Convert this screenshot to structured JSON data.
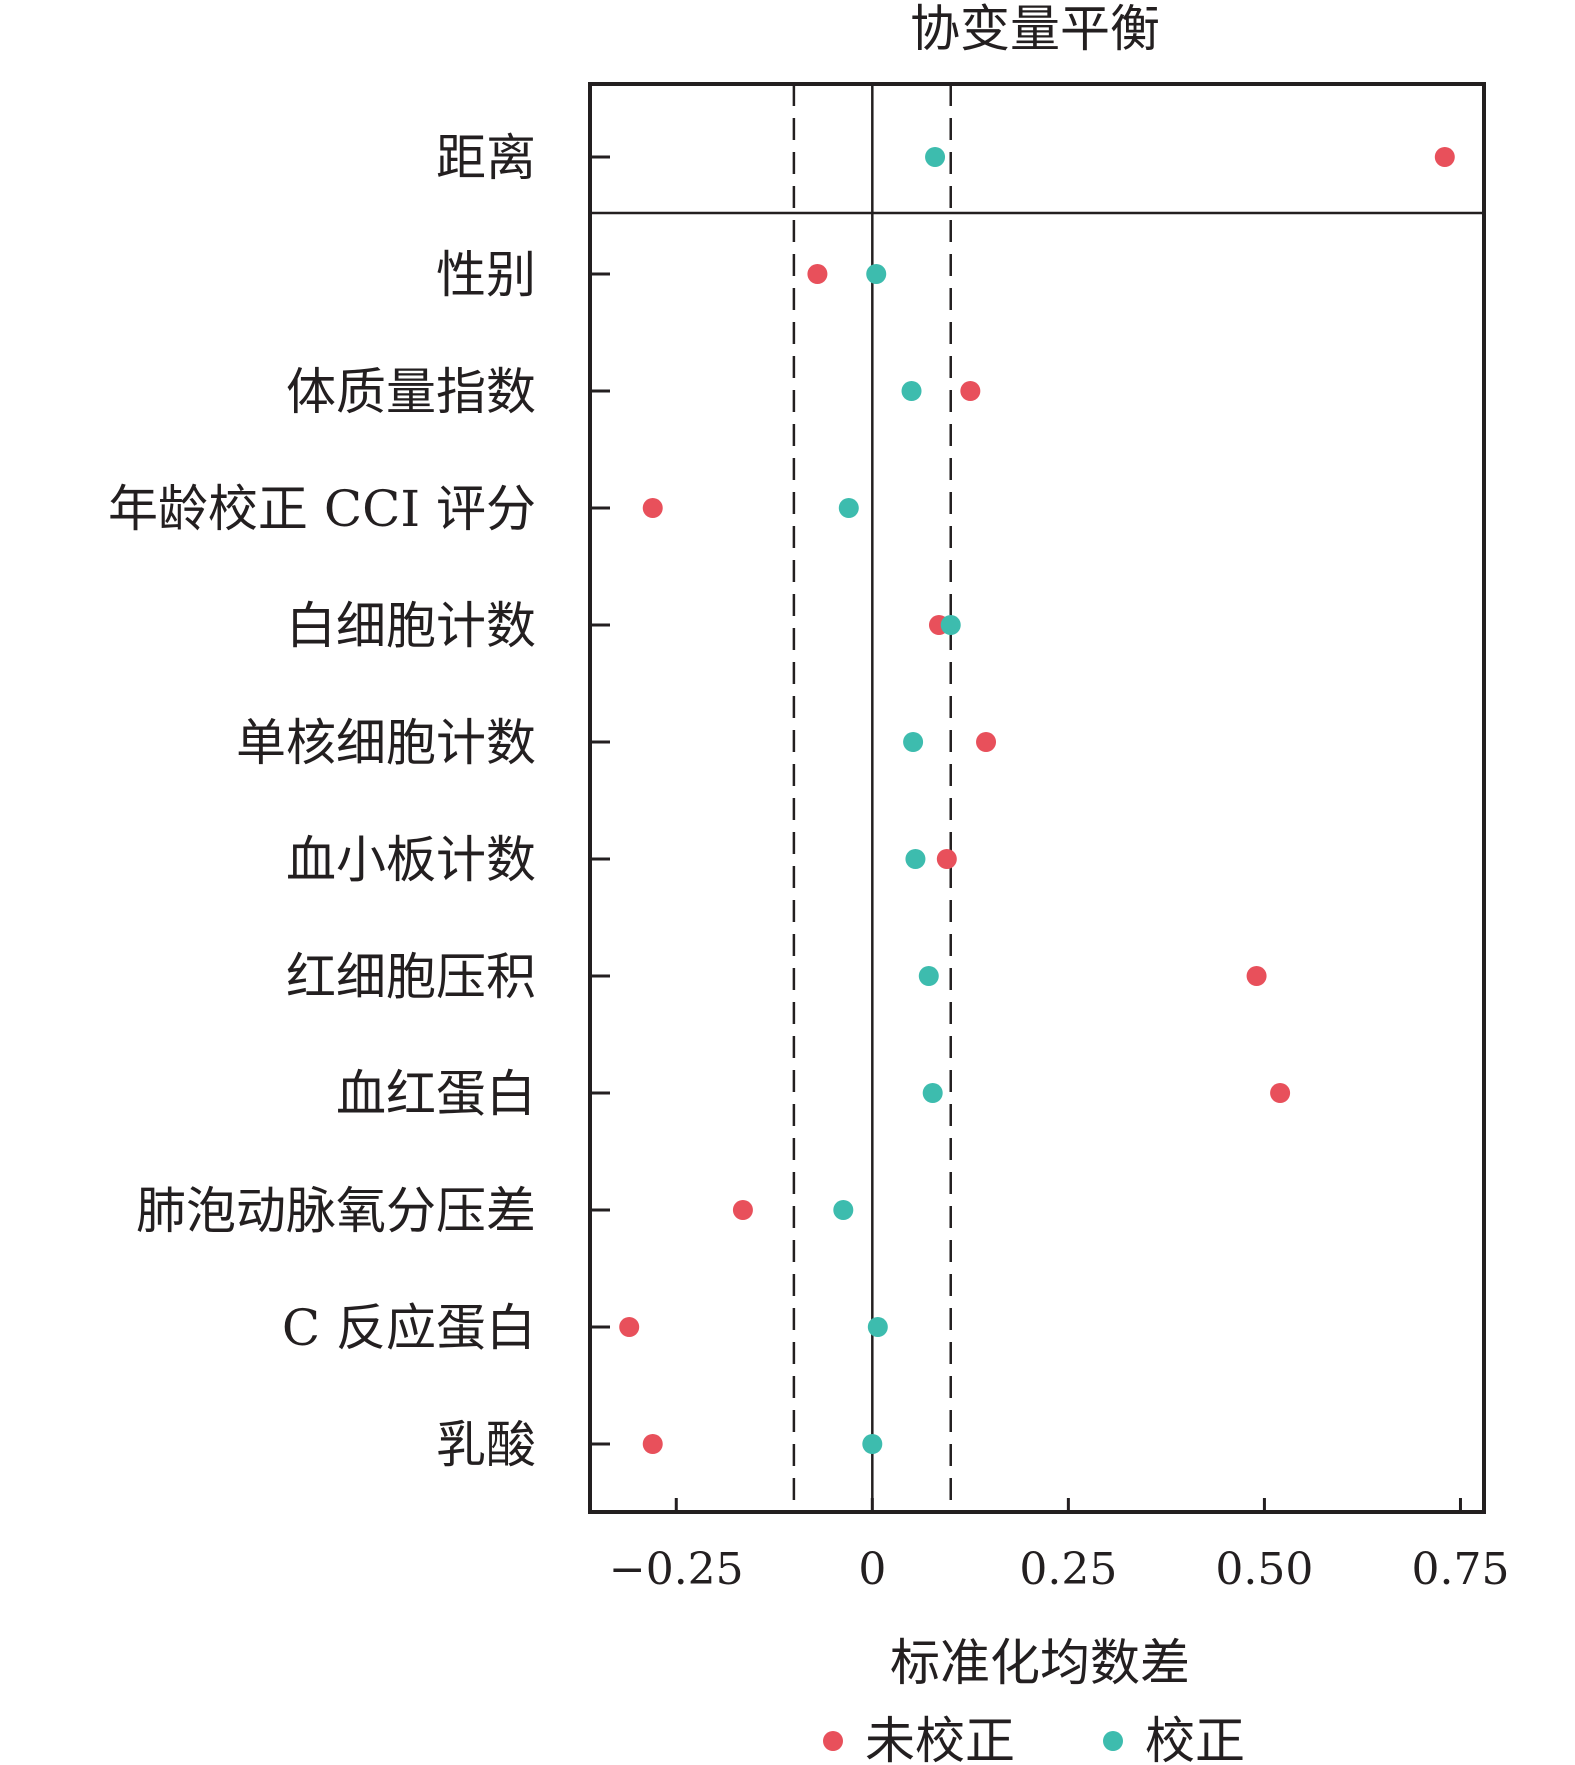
{
  "chart_data": {
    "type": "scatter",
    "title": "协变量平衡",
    "xlabel": "标准化均数差",
    "ylabel": "",
    "xlim": [
      -0.36,
      0.78
    ],
    "xticks": [
      -0.25,
      0,
      0.25,
      0.5,
      0.75
    ],
    "xtick_labels": [
      "−0.25",
      "0",
      "0.25",
      "0.50",
      "0.75"
    ],
    "reference_lines": {
      "solid": 0,
      "dashed": [
        -0.1,
        0.1
      ]
    },
    "grid": false,
    "legend_position": "bottom",
    "categories": [
      "距离",
      "性别",
      "体质量指数",
      "年龄校正 CCI 评分",
      "白细胞计数",
      "单核细胞计数",
      "血小板计数",
      "红细胞压积",
      "血红蛋白",
      "肺泡动脉氧分压差",
      "C 反应蛋白",
      "乳酸"
    ],
    "series": [
      {
        "name": "未校正",
        "color": "#e8505b",
        "values": [
          0.73,
          -0.07,
          0.125,
          -0.28,
          0.085,
          0.145,
          0.095,
          0.49,
          0.52,
          -0.165,
          -0.31,
          -0.28
        ]
      },
      {
        "name": "校正",
        "color": "#3dbcae",
        "values": [
          0.08,
          0.005,
          0.05,
          -0.03,
          0.1,
          0.052,
          0.055,
          0.072,
          0.077,
          -0.037,
          0.007,
          0.0
        ]
      }
    ]
  }
}
